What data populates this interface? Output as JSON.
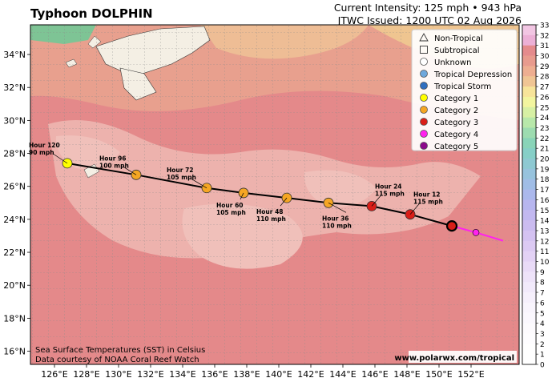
{
  "header": {
    "title": "Typhoon DOLPHIN",
    "intensity": "Current Intensity: 125 mph • 943 hPa",
    "issued": "JTWC Issued: 1200 UTC 02 Aug 2026"
  },
  "axes": {
    "lon_labels": [
      "126°E",
      "128°E",
      "130°E",
      "132°E",
      "134°E",
      "136°E",
      "138°E",
      "140°E",
      "142°E",
      "144°E",
      "146°E",
      "148°E",
      "150°E",
      "152°E"
    ],
    "lat_labels": [
      "34°N",
      "32°N",
      "30°N",
      "28°N",
      "26°N",
      "24°N",
      "22°N",
      "20°N",
      "18°N",
      "16°N"
    ]
  },
  "legend": [
    {
      "label": "Non-Tropical",
      "marker": "triangle",
      "color": "none"
    },
    {
      "label": "Subtropical",
      "marker": "square",
      "color": "none"
    },
    {
      "label": "Unknown",
      "marker": "circle",
      "color": "#ffffff"
    },
    {
      "label": "Tropical Depression",
      "marker": "circle",
      "color": "#6ea8dc"
    },
    {
      "label": "Tropical Storm",
      "marker": "circle",
      "color": "#2f6fbf"
    },
    {
      "label": "Category 1",
      "marker": "circle",
      "color": "#ffff00"
    },
    {
      "label": "Category 2",
      "marker": "circle",
      "color": "#f5a623"
    },
    {
      "label": "Category 3",
      "marker": "circle",
      "color": "#d91e18"
    },
    {
      "label": "Category 4",
      "marker": "circle",
      "color": "#ff22ee"
    },
    {
      "label": "Category 5",
      "marker": "circle",
      "color": "#8b0a8b"
    }
  ],
  "forecast": [
    {
      "hour": "Hour 120",
      "wind": "90 mph",
      "color": "#ffff00",
      "lon": 126.8,
      "lat": 27.4
    },
    {
      "hour": "Hour 96",
      "wind": "100 mph",
      "color": "#f5a623",
      "lon": 131.1,
      "lat": 26.7
    },
    {
      "hour": "Hour 72",
      "wind": "105 mph",
      "color": "#f5a623",
      "lon": 135.5,
      "lat": 25.9
    },
    {
      "hour": "Hour 60",
      "wind": "105 mph",
      "color": "#f5a623",
      "lon": 137.8,
      "lat": 25.6
    },
    {
      "hour": "Hour 48",
      "wind": "110 mph",
      "color": "#f5a623",
      "lon": 140.5,
      "lat": 25.3
    },
    {
      "hour": "Hour 36",
      "wind": "110 mph",
      "color": "#f5a623",
      "lon": 143.1,
      "lat": 25.0
    },
    {
      "hour": "Hour 24",
      "wind": "115 mph",
      "color": "#d91e18",
      "lon": 145.8,
      "lat": 24.8
    },
    {
      "hour": "Hour 12",
      "wind": "115 mph",
      "color": "#d91e18",
      "lon": 148.2,
      "lat": 24.3
    }
  ],
  "current": {
    "color": "#d91e18",
    "lon": 150.8,
    "lat": 23.6
  },
  "past_track": [
    {
      "lon": 152.3,
      "lat": 23.2,
      "color": "#ff22ee"
    },
    {
      "lon": 154.0,
      "lat": 22.7
    }
  ],
  "colorbar": {
    "ticks": [
      "33",
      "32",
      "31",
      "30",
      "29",
      "28",
      "27",
      "26",
      "25",
      "24",
      "23",
      "22",
      "21",
      "20",
      "19",
      "18",
      "17",
      "16",
      "15",
      "14",
      "13",
      "12",
      "11",
      "10",
      "9",
      "8",
      "7",
      "6",
      "5",
      "4",
      "3",
      "2",
      "1",
      "0"
    ],
    "unit": "°C"
  },
  "footer": {
    "sst_note": "Sea Surface Temperatures (SST) in Celsius",
    "credit": "Data courtesy of NOAA Coral Reef Watch",
    "site": "www.polarwx.com/tropical"
  }
}
